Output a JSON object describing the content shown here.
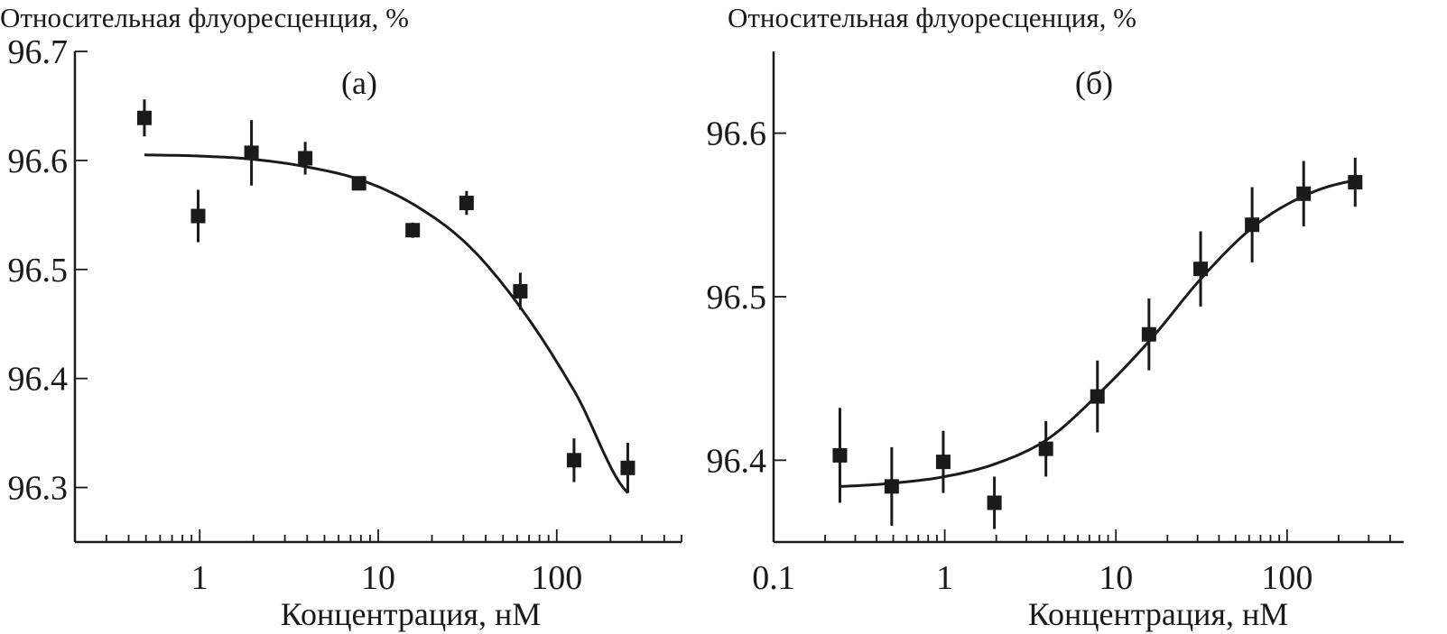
{
  "chart_data": [
    {
      "type": "scatter",
      "panel_label": "(а)",
      "ylabel": "Относительная флуоресценция, %",
      "xlabel": "Концентрация, нМ",
      "x_scale": "log",
      "xlim": [
        0.2,
        500
      ],
      "ylim": [
        96.25,
        96.7
      ],
      "x_tick_labels": [
        "1",
        "10",
        "100"
      ],
      "x_ticks": [
        1,
        10,
        100
      ],
      "y_tick_labels": [
        "96.3",
        "96.4",
        "96.5",
        "96.6",
        "96.7"
      ],
      "y_ticks": [
        96.3,
        96.4,
        96.5,
        96.6,
        96.7
      ],
      "grid": false,
      "points": {
        "x": [
          0.49,
          0.98,
          1.95,
          3.9,
          7.8,
          15.6,
          31.25,
          62.5,
          125,
          250
        ],
        "y": [
          96.639,
          96.549,
          96.607,
          96.602,
          96.579,
          96.536,
          96.561,
          96.48,
          96.325,
          96.318
        ],
        "err": [
          0.017,
          0.024,
          0.03,
          0.015,
          0.006,
          0.007,
          0.011,
          0.017,
          0.02,
          0.023
        ]
      },
      "fit": {
        "x": [
          0.49,
          1,
          2,
          4,
          8,
          16,
          32,
          64,
          128,
          250
        ],
        "y": [
          96.605,
          96.604,
          96.601,
          96.594,
          96.582,
          96.559,
          96.522,
          96.463,
          96.386,
          96.295
        ]
      },
      "color": "#1a1a1a"
    },
    {
      "type": "scatter",
      "panel_label": "(б)",
      "ylabel": "Относительная флуоресценция, %",
      "xlabel": "Концентрация, нМ",
      "x_scale": "log",
      "xlim": [
        0.1,
        480
      ],
      "ylim": [
        96.35,
        96.65
      ],
      "x_tick_labels": [
        "0.1",
        "1",
        "10",
        "100"
      ],
      "x_ticks": [
        0.1,
        1,
        10,
        100
      ],
      "y_tick_labels": [
        "96.4",
        "96.5",
        "96.6"
      ],
      "y_ticks": [
        96.4,
        96.5,
        96.6
      ],
      "grid": false,
      "points": {
        "x": [
          0.244,
          0.49,
          0.98,
          1.95,
          3.9,
          7.8,
          15.6,
          31.25,
          62.5,
          125,
          250
        ],
        "y": [
          96.403,
          96.384,
          96.399,
          96.374,
          96.407,
          96.439,
          96.477,
          96.517,
          96.544,
          96.563,
          96.57
        ],
        "err": [
          0.029,
          0.024,
          0.019,
          0.016,
          0.017,
          0.022,
          0.022,
          0.023,
          0.023,
          0.02,
          0.015
        ]
      },
      "fit": {
        "x": [
          0.244,
          0.5,
          1,
          2,
          4,
          8,
          16,
          32,
          64,
          128,
          250
        ],
        "y": [
          96.384,
          96.386,
          96.39,
          96.398,
          96.413,
          96.441,
          96.474,
          96.512,
          96.543,
          96.562,
          96.571
        ]
      },
      "color": "#1a1a1a"
    }
  ]
}
